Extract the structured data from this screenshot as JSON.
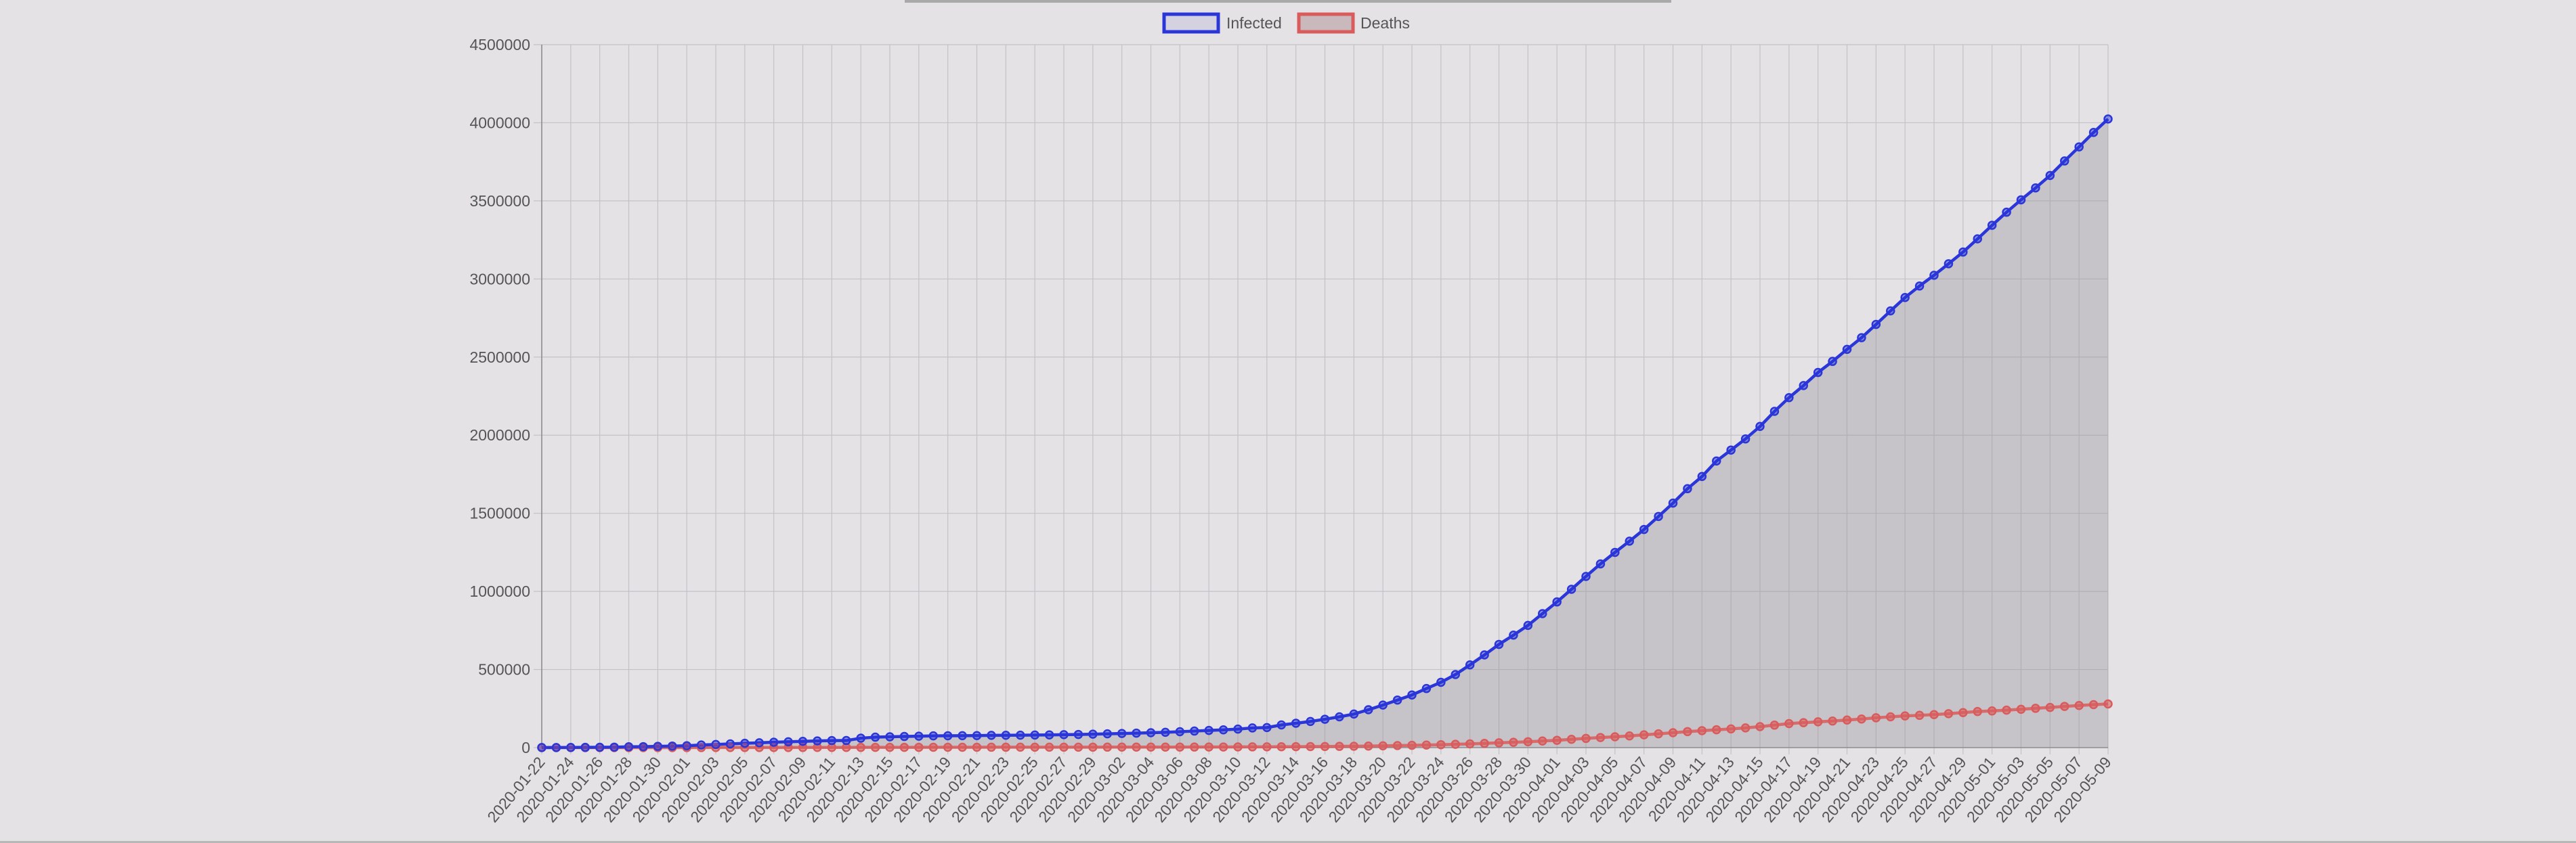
{
  "chart_data": {
    "type": "line",
    "title": "",
    "xlabel": "",
    "ylabel": "",
    "ylim": [
      0,
      4500000
    ],
    "y_ticks": [
      "0",
      "500000",
      "1000000",
      "1500000",
      "2000000",
      "2500000",
      "3000000",
      "3500000",
      "4000000",
      "4500000"
    ],
    "x_tick_labels_shown": [
      "2020-01-22",
      "2020-01-24",
      "2020-01-26",
      "2020-01-28",
      "2020-01-30",
      "2020-02-01",
      "2020-02-03",
      "2020-02-05",
      "2020-02-07",
      "2020-02-09",
      "2020-02-11",
      "2020-02-13",
      "2020-02-15",
      "2020-02-17",
      "2020-02-19",
      "2020-02-21",
      "2020-02-23",
      "2020-02-25",
      "2020-02-27",
      "2020-02-29",
      "2020-03-02",
      "2020-03-04",
      "2020-03-06",
      "2020-03-08",
      "2020-03-10",
      "2020-03-12",
      "2020-03-14",
      "2020-03-16",
      "2020-03-18",
      "2020-03-20",
      "2020-03-22",
      "2020-03-24",
      "2020-03-26",
      "2020-03-28",
      "2020-03-30",
      "2020-04-01",
      "2020-04-03",
      "2020-04-05",
      "2020-04-07",
      "2020-04-09",
      "2020-04-11",
      "2020-04-13",
      "2020-04-15",
      "2020-04-17",
      "2020-04-19",
      "2020-04-21",
      "2020-04-23",
      "2020-04-25",
      "2020-04-27",
      "2020-04-29",
      "2020-05-01",
      "2020-05-03",
      "2020-05-05",
      "2020-05-07",
      "2020-05-09"
    ],
    "x_start": "2020-01-22",
    "x_end": "2020-05-09",
    "grid": true,
    "legend_position": "top",
    "series": [
      {
        "name": "Infected",
        "color": "#2b36d9",
        "fill": false,
        "values": [
          555,
          654,
          941,
          1434,
          2118,
          2927,
          5578,
          6166,
          8234,
          9927,
          12038,
          16787,
          19881,
          23892,
          27635,
          30817,
          34391,
          37120,
          40150,
          42762,
          44802,
          45221,
          60368,
          66885,
          69030,
          71224,
          73258,
          75136,
          75639,
          76197,
          76819,
          78572,
          78958,
          79561,
          80406,
          81388,
          82746,
          84112,
          86011,
          88369,
          90306,
          92840,
          95120,
          97886,
          101801,
          105847,
          109821,
          113590,
          118620,
          125875,
          128352,
          145205,
          156101,
          167454,
          181574,
          197102,
          214821,
          242570,
          272208,
          304507,
          336953,
          378235,
          418045,
          467653,
          529591,
          593291,
          660706,
          720117,
          782365,
          857487,
          932605,
          1013466,
          1095917,
          1176060,
          1249754,
          1321481,
          1396476,
          1479804,
          1565278,
          1657526,
          1735650,
          1834721,
          1904838,
          1976191,
          2056054,
          2152437,
          2240190,
          2317758,
          2401378,
          2472259,
          2549294,
          2624074,
          2708885,
          2795731,
          2881140,
          2955033,
          3023722,
          3097229,
          3172287,
          3256846,
          3343777,
          3427343,
          3506729,
          3583055,
          3662691,
          3755341,
          3845718,
          3938064,
          4024009
        ]
      },
      {
        "name": "Deaths",
        "color": "#d95b5b",
        "fill": true,
        "values": [
          17,
          18,
          26,
          42,
          56,
          82,
          131,
          133,
          171,
          213,
          259,
          362,
          426,
          492,
          564,
          634,
          719,
          806,
          906,
          1013,
          1113,
          1118,
          1371,
          1523,
          1666,
          1770,
          1868,
          2007,
          2122,
          2247,
          2251,
          2458,
          2469,
          2629,
          2708,
          2770,
          2814,
          2872,
          2941,
          2996,
          3085,
          3160,
          3254,
          3348,
          3460,
          3558,
          3803,
          3996,
          4262,
          4615,
          4720,
          5404,
          5819,
          6440,
          7126,
          7905,
          8733,
          9867,
          11299,
          12973,
          14623,
          16497,
          18615,
          21181,
          23970,
          27198,
          30652,
          33925,
          37582,
          42107,
          46809,
          52983,
          58787,
          64606,
          69374,
          74565,
          81865,
          88338,
          95455,
          102525,
          108503,
          114091,
          119482,
          125984,
          134177,
          143800,
          153822,
          159510,
          165044,
          169986,
          176583,
          183027,
          190858,
          197159,
          202846,
          206544,
          211167,
          217153,
          224172,
          230971,
          234704,
          239740,
          245159,
          251537,
          257238,
          263855,
          269567,
          274898,
          279311
        ]
      }
    ]
  },
  "legend": {
    "infected_label": "Infected",
    "deaths_label": "Deaths"
  }
}
